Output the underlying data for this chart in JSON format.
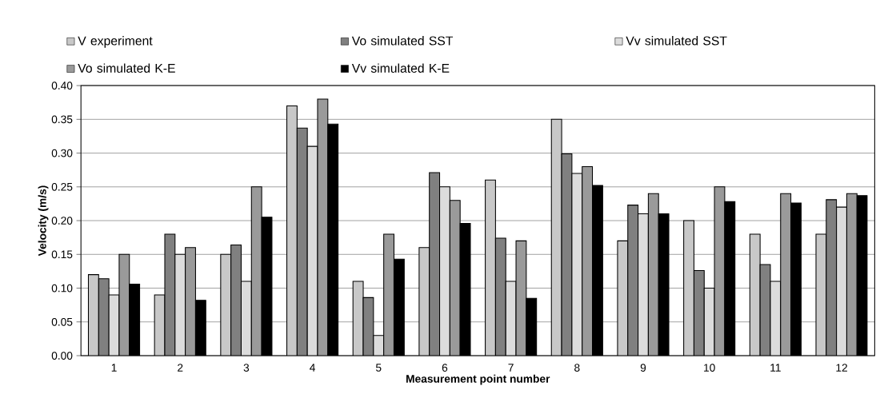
{
  "chart_data": {
    "type": "bar",
    "xlabel": "Measurement point number",
    "ylabel": "Velocity (m/s)",
    "categories": [
      "1",
      "2",
      "3",
      "4",
      "5",
      "6",
      "7",
      "8",
      "9",
      "10",
      "11",
      "12"
    ],
    "series": [
      {
        "name": "V experiment",
        "color": "#c8c8c8",
        "values": [
          0.12,
          0.09,
          0.15,
          0.37,
          0.11,
          0.16,
          0.26,
          0.35,
          0.17,
          0.2,
          0.18,
          0.18
        ]
      },
      {
        "name": "Vo simulated SST",
        "color": "#808080",
        "values": [
          0.114,
          0.18,
          0.164,
          0.337,
          0.086,
          0.271,
          0.174,
          0.299,
          0.223,
          0.126,
          0.135,
          0.231
        ]
      },
      {
        "name": "Vv simulated SST",
        "color": "#dcdcdc",
        "values": [
          0.09,
          0.15,
          0.11,
          0.31,
          0.03,
          0.25,
          0.11,
          0.27,
          0.21,
          0.1,
          0.11,
          0.22
        ]
      },
      {
        "name": "Vo simulated K-E",
        "color": "#9a9a9a",
        "values": [
          0.15,
          0.16,
          0.25,
          0.38,
          0.18,
          0.23,
          0.17,
          0.28,
          0.24,
          0.25,
          0.24,
          0.24
        ]
      },
      {
        "name": "Vv simulated K-E",
        "color": "#000000",
        "values": [
          0.106,
          0.082,
          0.205,
          0.343,
          0.143,
          0.196,
          0.085,
          0.252,
          0.21,
          0.228,
          0.226,
          0.237
        ]
      }
    ],
    "ylim": [
      0,
      0.4
    ],
    "yticks": [
      {
        "value": 0,
        "label": "0.00"
      },
      {
        "value": 0.05,
        "label": "0.05"
      },
      {
        "value": 0.1,
        "label": "0.10"
      },
      {
        "value": 0.15,
        "label": "0.15"
      },
      {
        "value": 0.2,
        "label": "0.20"
      },
      {
        "value": 0.25,
        "label": "0.25"
      },
      {
        "value": 0.3,
        "label": "0.30"
      },
      {
        "value": 0.35,
        "label": "0.35"
      },
      {
        "value": 0.4,
        "label": "0.40"
      }
    ],
    "grid": "y",
    "legend": "top"
  }
}
